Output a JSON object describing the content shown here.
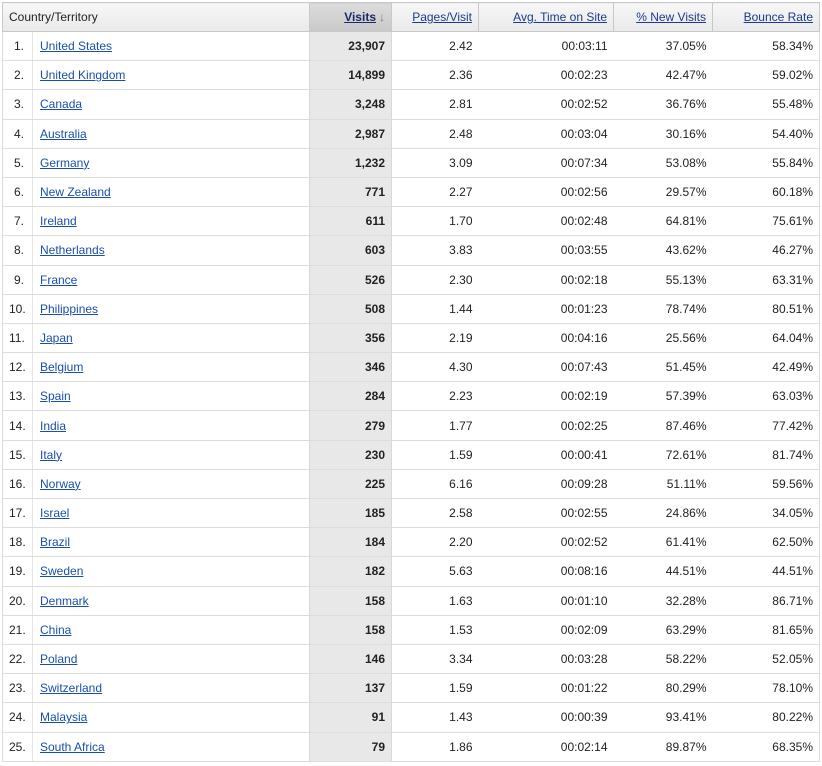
{
  "headers": {
    "country": "Country/Territory",
    "visits": "Visits",
    "pages_per_visit": "Pages/Visit",
    "avg_time": "Avg. Time on Site",
    "new_visits": "% New Visits",
    "bounce_rate": "Bounce Rate"
  },
  "sort_icon": "arrow-down-icon",
  "rows": [
    {
      "rank": "1.",
      "country": "United States",
      "visits": "23,907",
      "pages": "2.42",
      "time": "00:03:11",
      "new": "37.05%",
      "bounce": "58.34%"
    },
    {
      "rank": "2.",
      "country": "United Kingdom",
      "visits": "14,899",
      "pages": "2.36",
      "time": "00:02:23",
      "new": "42.47%",
      "bounce": "59.02%"
    },
    {
      "rank": "3.",
      "country": "Canada",
      "visits": "3,248",
      "pages": "2.81",
      "time": "00:02:52",
      "new": "36.76%",
      "bounce": "55.48%"
    },
    {
      "rank": "4.",
      "country": "Australia",
      "visits": "2,987",
      "pages": "2.48",
      "time": "00:03:04",
      "new": "30.16%",
      "bounce": "54.40%"
    },
    {
      "rank": "5.",
      "country": "Germany",
      "visits": "1,232",
      "pages": "3.09",
      "time": "00:07:34",
      "new": "53.08%",
      "bounce": "55.84%"
    },
    {
      "rank": "6.",
      "country": "New Zealand",
      "visits": "771",
      "pages": "2.27",
      "time": "00:02:56",
      "new": "29.57%",
      "bounce": "60.18%"
    },
    {
      "rank": "7.",
      "country": "Ireland",
      "visits": "611",
      "pages": "1.70",
      "time": "00:02:48",
      "new": "64.81%",
      "bounce": "75.61%"
    },
    {
      "rank": "8.",
      "country": "Netherlands",
      "visits": "603",
      "pages": "3.83",
      "time": "00:03:55",
      "new": "43.62%",
      "bounce": "46.27%"
    },
    {
      "rank": "9.",
      "country": "France",
      "visits": "526",
      "pages": "2.30",
      "time": "00:02:18",
      "new": "55.13%",
      "bounce": "63.31%"
    },
    {
      "rank": "10.",
      "country": "Philippines",
      "visits": "508",
      "pages": "1.44",
      "time": "00:01:23",
      "new": "78.74%",
      "bounce": "80.51%"
    },
    {
      "rank": "11.",
      "country": "Japan",
      "visits": "356",
      "pages": "2.19",
      "time": "00:04:16",
      "new": "25.56%",
      "bounce": "64.04%"
    },
    {
      "rank": "12.",
      "country": "Belgium",
      "visits": "346",
      "pages": "4.30",
      "time": "00:07:43",
      "new": "51.45%",
      "bounce": "42.49%"
    },
    {
      "rank": "13.",
      "country": "Spain",
      "visits": "284",
      "pages": "2.23",
      "time": "00:02:19",
      "new": "57.39%",
      "bounce": "63.03%"
    },
    {
      "rank": "14.",
      "country": "India",
      "visits": "279",
      "pages": "1.77",
      "time": "00:02:25",
      "new": "87.46%",
      "bounce": "77.42%"
    },
    {
      "rank": "15.",
      "country": "Italy",
      "visits": "230",
      "pages": "1.59",
      "time": "00:00:41",
      "new": "72.61%",
      "bounce": "81.74%"
    },
    {
      "rank": "16.",
      "country": "Norway",
      "visits": "225",
      "pages": "6.16",
      "time": "00:09:28",
      "new": "51.11%",
      "bounce": "59.56%"
    },
    {
      "rank": "17.",
      "country": "Israel",
      "visits": "185",
      "pages": "2.58",
      "time": "00:02:55",
      "new": "24.86%",
      "bounce": "34.05%"
    },
    {
      "rank": "18.",
      "country": "Brazil",
      "visits": "184",
      "pages": "2.20",
      "time": "00:02:52",
      "new": "61.41%",
      "bounce": "62.50%"
    },
    {
      "rank": "19.",
      "country": "Sweden",
      "visits": "182",
      "pages": "5.63",
      "time": "00:08:16",
      "new": "44.51%",
      "bounce": "44.51%"
    },
    {
      "rank": "20.",
      "country": "Denmark",
      "visits": "158",
      "pages": "1.63",
      "time": "00:01:10",
      "new": "32.28%",
      "bounce": "86.71%"
    },
    {
      "rank": "21.",
      "country": "China",
      "visits": "158",
      "pages": "1.53",
      "time": "00:02:09",
      "new": "63.29%",
      "bounce": "81.65%"
    },
    {
      "rank": "22.",
      "country": "Poland",
      "visits": "146",
      "pages": "3.34",
      "time": "00:03:28",
      "new": "58.22%",
      "bounce": "52.05%"
    },
    {
      "rank": "23.",
      "country": "Switzerland",
      "visits": "137",
      "pages": "1.59",
      "time": "00:01:22",
      "new": "80.29%",
      "bounce": "78.10%"
    },
    {
      "rank": "24.",
      "country": "Malaysia",
      "visits": "91",
      "pages": "1.43",
      "time": "00:00:39",
      "new": "93.41%",
      "bounce": "80.22%"
    },
    {
      "rank": "25.",
      "country": "South Africa",
      "visits": "79",
      "pages": "1.86",
      "time": "00:02:14",
      "new": "89.87%",
      "bounce": "68.35%"
    }
  ]
}
